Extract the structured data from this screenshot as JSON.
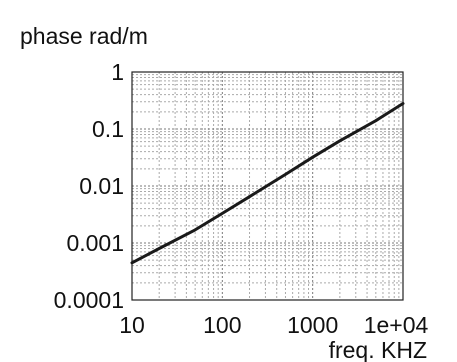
{
  "chart_data": {
    "type": "line",
    "title": "",
    "ylabel": "phase rad/m",
    "xlabel": "freq. KHZ",
    "x_scale": "log",
    "y_scale": "log",
    "xlim": [
      10,
      10000
    ],
    "ylim": [
      0.0001,
      1
    ],
    "grid": true,
    "x_ticks": [
      {
        "value": 10,
        "label": "10"
      },
      {
        "value": 100,
        "label": "100"
      },
      {
        "value": 1000,
        "label": "1000"
      },
      {
        "value": 10000,
        "label": "1e+04"
      }
    ],
    "y_ticks": [
      {
        "value": 1,
        "label": "1"
      },
      {
        "value": 0.1,
        "label": "0.1"
      },
      {
        "value": 0.01,
        "label": "0.01"
      },
      {
        "value": 0.001,
        "label": "0.001"
      },
      {
        "value": 0.0001,
        "label": "0.0001"
      }
    ],
    "series": [
      {
        "color": "#1a1a1a",
        "x": [
          10,
          20,
          50,
          100,
          200,
          500,
          1000,
          2000,
          5000,
          10000
        ],
        "y": [
          0.00045,
          0.0008,
          0.0017,
          0.0033,
          0.0065,
          0.016,
          0.032,
          0.062,
          0.14,
          0.28
        ]
      }
    ]
  }
}
